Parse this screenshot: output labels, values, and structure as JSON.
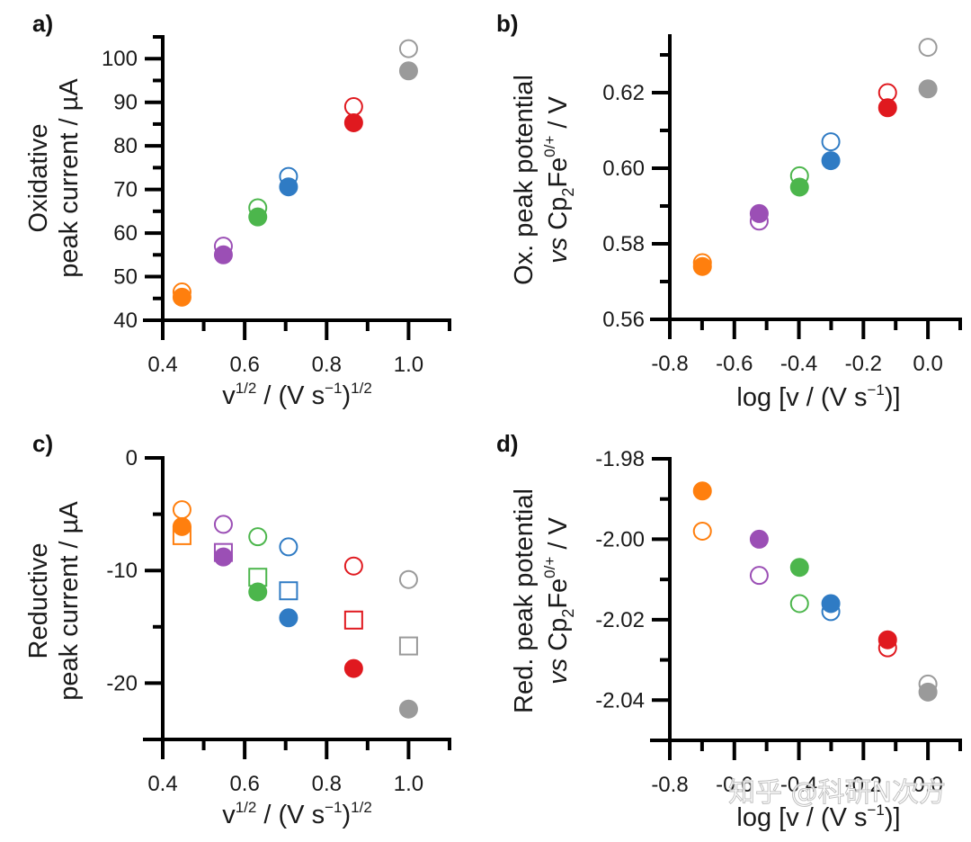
{
  "colors": {
    "orange": "#ff7f0e",
    "purple": "#9b4fb5",
    "green": "#4cb64c",
    "blue": "#2f7bc4",
    "red": "#e0191f",
    "gray": "#9a9a9a"
  },
  "watermark": "知乎 @科研N次方",
  "chart_data": [
    {
      "id": "a",
      "panel_label": "a)",
      "type": "scatter",
      "xlabel": "v^1/2 / (V s^-1)^1/2",
      "xlabel_parts": {
        "base": "v",
        "sup1": "1/2",
        "mid": " / (V s",
        "sup2": "−1",
        "close": ")",
        "sup3": "1/2"
      },
      "ylabel_lines": [
        "Oxidative",
        "peak current / µA"
      ],
      "xlim": [
        0.4,
        1.1
      ],
      "ylim": [
        40,
        105
      ],
      "xticks": [
        0.4,
        0.6,
        0.8,
        1.0
      ],
      "xtick_labels": [
        "0.4",
        "0.6",
        "0.8",
        "1.0"
      ],
      "xminor": [
        0.5,
        0.7,
        0.9,
        1.1
      ],
      "yticks": [
        40,
        50,
        60,
        70,
        80,
        90,
        100
      ],
      "ytick_labels": [
        "40",
        "50",
        "60",
        "70",
        "80",
        "90",
        "100"
      ],
      "yminor": [
        45,
        55,
        65,
        75,
        85,
        95,
        105
      ],
      "x": [
        0.447,
        0.548,
        0.632,
        0.707,
        0.866,
        1.0
      ],
      "point_colors": [
        "orange",
        "purple",
        "green",
        "blue",
        "red",
        "gray"
      ],
      "series": [
        {
          "name": "open circles",
          "marker": "open-circle",
          "values": [
            46.5,
            57.0,
            65.8,
            73.0,
            89.0,
            102.3
          ]
        },
        {
          "name": "filled circles",
          "marker": "filled-circle",
          "values": [
            45.3,
            55.0,
            63.7,
            70.6,
            85.3,
            97.2
          ]
        }
      ],
      "grid": false
    },
    {
      "id": "b",
      "panel_label": "b)",
      "type": "scatter",
      "xlabel": "log [v / (V s^-1)]",
      "xlabel_parts": {
        "pre": "log [v / (V s",
        "sup": "−1",
        "post": ")]"
      },
      "ylabel_lines": [
        "Ox. peak potential",
        "vs Cp2Fe0/+ / V"
      ],
      "ylabel2_parts": {
        "italic": "vs",
        "a": " Cp",
        "sub": "2",
        "b": "Fe",
        "sup": "0/+",
        "c": " / V"
      },
      "xlim": [
        -0.8,
        0.1
      ],
      "ylim": [
        0.56,
        0.635
      ],
      "xticks": [
        -0.8,
        -0.6,
        -0.4,
        -0.2,
        0.0
      ],
      "xtick_labels": [
        "-0.8",
        "-0.6",
        "-0.4",
        "-0.2",
        "0.0"
      ],
      "xminor": [
        -0.7,
        -0.5,
        -0.3,
        -0.1,
        0.1
      ],
      "yticks": [
        0.56,
        0.58,
        0.6,
        0.62
      ],
      "ytick_labels": [
        "0.56",
        "0.58",
        "0.60",
        "0.62"
      ],
      "yminor": [
        0.57,
        0.59,
        0.61,
        0.63
      ],
      "x": [
        -0.699,
        -0.523,
        -0.398,
        -0.301,
        -0.125,
        0.0
      ],
      "point_colors": [
        "orange",
        "purple",
        "green",
        "blue",
        "red",
        "gray"
      ],
      "series": [
        {
          "name": "open circles",
          "marker": "open-circle",
          "values": [
            0.575,
            0.586,
            0.598,
            0.607,
            0.62,
            0.632
          ]
        },
        {
          "name": "filled circles",
          "marker": "filled-circle",
          "values": [
            0.574,
            0.588,
            0.595,
            0.602,
            0.616,
            0.621
          ]
        }
      ],
      "grid": false
    },
    {
      "id": "c",
      "panel_label": "c)",
      "type": "scatter",
      "xlabel": "v^1/2 / (V s^-1)^1/2",
      "xlabel_parts": {
        "base": "v",
        "sup1": "1/2",
        "mid": " / (V s",
        "sup2": "−1",
        "close": ")",
        "sup3": "1/2"
      },
      "ylabel_lines": [
        "Reductive",
        "peak current / µA"
      ],
      "xlim": [
        0.4,
        1.1
      ],
      "ylim": [
        -25,
        0
      ],
      "xticks": [
        0.4,
        0.6,
        0.8,
        1.0
      ],
      "xtick_labels": [
        "0.4",
        "0.6",
        "0.8",
        "1.0"
      ],
      "xminor": [
        0.5,
        0.7,
        0.9,
        1.1
      ],
      "yticks": [
        0,
        -10,
        -20
      ],
      "ytick_labels": [
        "0",
        "-10",
        "-20"
      ],
      "yminor": [
        -5,
        -15,
        -25
      ],
      "x": [
        0.447,
        0.548,
        0.632,
        0.707,
        0.866,
        1.0
      ],
      "point_colors": [
        "orange",
        "purple",
        "green",
        "blue",
        "red",
        "gray"
      ],
      "series": [
        {
          "name": "open squares",
          "marker": "open-square",
          "values": [
            -6.9,
            -8.4,
            -10.6,
            -11.8,
            -14.4,
            -16.7
          ]
        },
        {
          "name": "open circles",
          "marker": "open-circle",
          "values": [
            -4.6,
            -5.9,
            -7.0,
            -7.9,
            -9.6,
            -10.8
          ]
        },
        {
          "name": "filled circles",
          "marker": "filled-circle",
          "values": [
            -6.1,
            -8.8,
            -11.9,
            -14.2,
            -18.7,
            -22.3
          ]
        }
      ],
      "grid": false
    },
    {
      "id": "d",
      "panel_label": "d)",
      "type": "scatter",
      "xlabel": "log [v / (V s^-1)]",
      "xlabel_parts": {
        "pre": "log [v / (V s",
        "sup": "−1",
        "post": ")]"
      },
      "ylabel_lines": [
        "Red. peak potential",
        "vs Cp2Fe0/+ / V"
      ],
      "ylabel2_parts": {
        "italic": "vs",
        "a": " Cp",
        "sub": "2",
        "b": "Fe",
        "sup": "0/+",
        "c": " / V"
      },
      "xlim": [
        -0.8,
        0.1
      ],
      "ylim": [
        -2.05,
        -1.98
      ],
      "xticks": [
        -0.8,
        -0.6,
        -0.4,
        -0.2,
        0.0
      ],
      "xtick_labels": [
        "-0.8",
        "-0.6",
        "-0.4",
        "-0.2",
        "0.0"
      ],
      "xminor": [
        -0.7,
        -0.5,
        -0.3,
        -0.1,
        0.1
      ],
      "yticks": [
        -1.98,
        -2.0,
        -2.02,
        -2.04
      ],
      "ytick_labels": [
        "-1.98",
        "-2.00",
        "-2.02",
        "-2.04"
      ],
      "yminor": [
        -1.99,
        -2.01,
        -2.03,
        -2.05
      ],
      "x": [
        -0.699,
        -0.523,
        -0.398,
        -0.301,
        -0.125,
        0.0
      ],
      "point_colors": [
        "orange",
        "purple",
        "green",
        "blue",
        "red",
        "gray"
      ],
      "series": [
        {
          "name": "open circles",
          "marker": "open-circle",
          "values": [
            -1.998,
            -2.009,
            -2.016,
            -2.018,
            -2.027,
            -2.036
          ]
        },
        {
          "name": "filled circles",
          "marker": "filled-circle",
          "values": [
            -1.988,
            -2.0,
            -2.007,
            -2.016,
            -2.025,
            -2.038
          ]
        }
      ],
      "grid": false
    }
  ]
}
